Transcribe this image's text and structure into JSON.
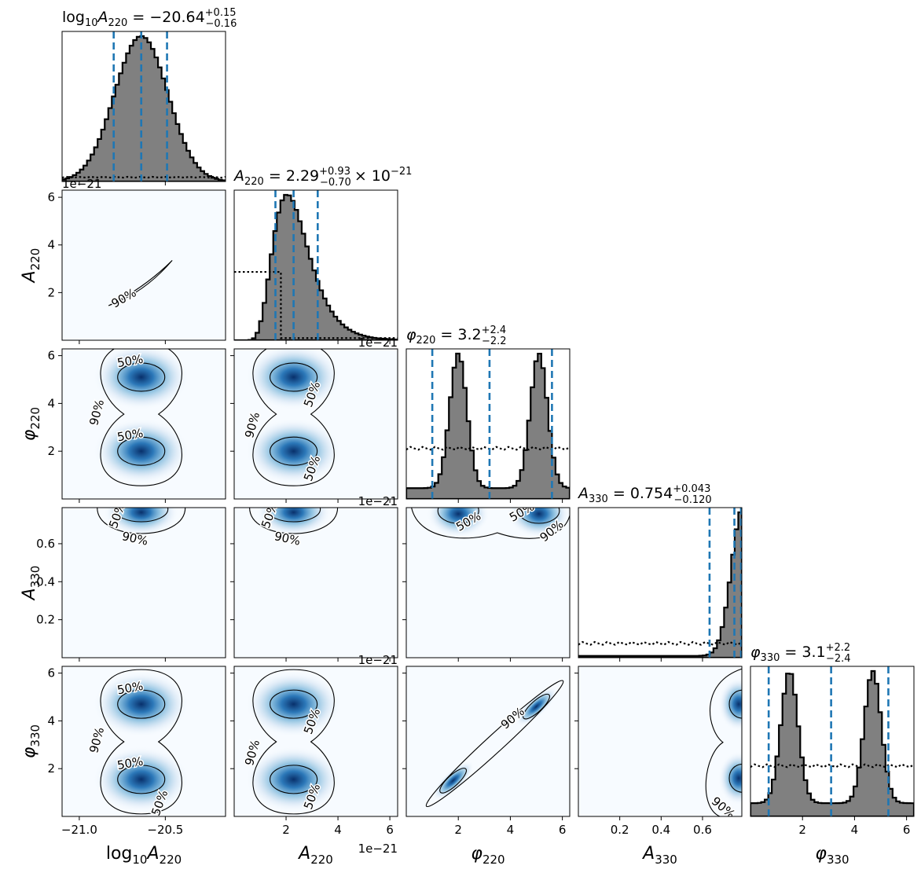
{
  "chart_data": {
    "type": "corner",
    "parameters": [
      {
        "key": "log10A220",
        "label": "log10A220",
        "range": [
          -21.1,
          -20.15
        ],
        "ticks": [
          -21.0,
          -20.5
        ],
        "tick_labels": [
          "−21.0",
          "−20.5"
        ]
      },
      {
        "key": "A220",
        "label": "A220",
        "range": [
          0.0,
          6.3
        ],
        "ticks": [
          2,
          4,
          6
        ],
        "tick_labels": [
          "2",
          "4",
          "6"
        ],
        "offset_text": "1e−21"
      },
      {
        "key": "phi220",
        "label": "φ220",
        "range": [
          0.0,
          6.283
        ],
        "ticks": [
          2,
          4,
          6
        ],
        "tick_labels": [
          "2",
          "4",
          "6"
        ]
      },
      {
        "key": "A330",
        "label": "A330",
        "range": [
          0.0,
          0.79
        ],
        "ticks": [
          0.2,
          0.4,
          0.6
        ],
        "tick_labels": [
          "0.2",
          "0.4",
          "0.6"
        ]
      },
      {
        "key": "phi330",
        "label": "φ330",
        "range": [
          0.0,
          6.283
        ],
        "ticks": [
          2,
          4,
          6
        ],
        "tick_labels": [
          "2",
          "4",
          "6"
        ]
      }
    ],
    "titles": [
      {
        "param": "log10A220",
        "median": "−20.64",
        "plus": "+0.15",
        "minus": "−0.16"
      },
      {
        "param": "A220",
        "median": "2.29",
        "plus": "+0.93",
        "minus": "−0.70",
        "suffix": "× 10",
        "exponent": "−21"
      },
      {
        "param": "phi220",
        "median": "3.2",
        "plus": "+2.4",
        "minus": "−2.2"
      },
      {
        "param": "A330",
        "median": "0.754",
        "plus": "+0.043",
        "minus": "−0.120"
      },
      {
        "param": "phi330",
        "median": "3.1",
        "plus": "+2.2",
        "minus": "−2.4"
      }
    ],
    "quantiles_16_50_84": [
      [
        -20.8,
        -20.64,
        -20.49
      ],
      [
        1.59,
        2.29,
        3.22
      ],
      [
        1.0,
        3.2,
        5.6
      ],
      [
        0.634,
        0.754,
        0.797
      ],
      [
        0.7,
        3.1,
        5.3
      ]
    ],
    "histograms": [
      {
        "kind": "gaussian",
        "modes": [
          {
            "mu": -20.64,
            "sigma": 0.155,
            "w": 1
          }
        ]
      },
      {
        "kind": "lognormal",
        "median": 2.29,
        "sigma_log": 0.34
      },
      {
        "kind": "gaussian",
        "modes": [
          {
            "mu": 2.0,
            "sigma": 0.33,
            "w": 1
          },
          {
            "mu": 5.1,
            "sigma": 0.33,
            "w": 1
          }
        ],
        "floor": 0.08
      },
      {
        "kind": "gaussian",
        "modes": [
          {
            "mu": 0.795,
            "sigma": 0.055,
            "w": 1
          }
        ],
        "floor": 0.012
      },
      {
        "kind": "gaussian",
        "modes": [
          {
            "mu": 1.5,
            "sigma": 0.33,
            "w": 1
          },
          {
            "mu": 4.7,
            "sigma": 0.33,
            "w": 1
          }
        ],
        "floor": 0.1
      }
    ],
    "prior": {
      "style": "dotted",
      "log10A220": 0.03,
      "A220": [
        [
          0.0,
          1.8,
          0.47
        ],
        [
          1.8,
          6.3,
          0.015
        ]
      ],
      "phi220": 0.35,
      "A330": 0.1,
      "phi330": 0.35
    },
    "contour_levels": [
      "50%",
      "90%"
    ],
    "colormap": "Blues",
    "colors": {
      "hist_fill": "#808080",
      "hist_edge": "#000000",
      "quantile_line": "#1f77b4",
      "prior": "#000000",
      "contour": "#000000"
    }
  }
}
